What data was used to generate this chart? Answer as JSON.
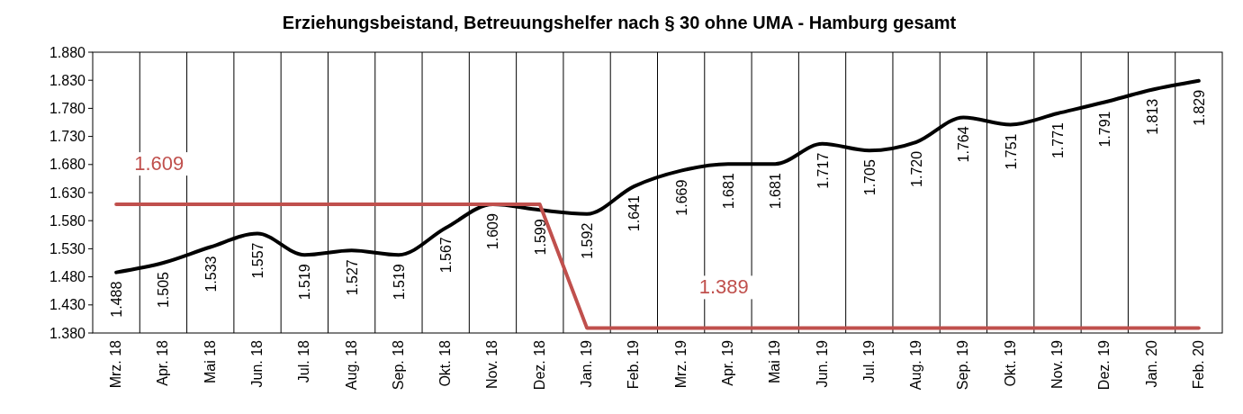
{
  "chart_data": {
    "type": "line",
    "title": "Erziehungsbeistand, Betreuungshelfer nach § 30 ohne UMA  -  Hamburg gesamt",
    "categories": [
      "Mrz. 18",
      "Apr. 18",
      "Mai 18",
      "Jun. 18",
      "Jul. 18",
      "Aug. 18",
      "Sep. 18",
      "Okt. 18",
      "Nov. 18",
      "Dez. 18",
      "Jan. 19",
      "Feb. 19",
      "Mrz. 19",
      "Apr. 19",
      "Mai 19",
      "Jun. 19",
      "Jul. 19",
      "Aug. 19",
      "Sep. 19",
      "Okt. 19",
      "Nov. 19",
      "Dez. 19",
      "Jan. 20",
      "Feb. 20"
    ],
    "series": [
      {
        "color": "#000000",
        "values": [
          1488,
          1505,
          1533,
          1557,
          1519,
          1527,
          1519,
          1567,
          1609,
          1599,
          1592,
          1641,
          1669,
          1681,
          1681,
          1717,
          1705,
          1720,
          1764,
          1751,
          1771,
          1791,
          1813,
          1829
        ],
        "value_labels": [
          "1.488",
          "1.505",
          "1.533",
          "1.557",
          "1.519",
          "1.527",
          "1.519",
          "1.567",
          "1.609",
          "1.599",
          "1.592",
          "1.641",
          "1.669",
          "1.681",
          "1.681",
          "1.717",
          "1.705",
          "1.720",
          "1.764",
          "1.751",
          "1.771",
          "1.791",
          "1.813",
          "1.829"
        ]
      },
      {
        "color": "#c0504d",
        "values": [
          1609,
          1609,
          1609,
          1609,
          1609,
          1609,
          1609,
          1609,
          1609,
          1609,
          1389,
          1389,
          1389,
          1389,
          1389,
          1389,
          1389,
          1389,
          1389,
          1389,
          1389,
          1389,
          1389,
          1389
        ]
      }
    ],
    "ylim": [
      1380,
      1880
    ],
    "yticks": [
      {
        "value": 1380,
        "label": "1.380"
      },
      {
        "value": 1430,
        "label": "1.430"
      },
      {
        "value": 1480,
        "label": "1.480"
      },
      {
        "value": 1530,
        "label": "1.530"
      },
      {
        "value": 1580,
        "label": "1.580"
      },
      {
        "value": 1630,
        "label": "1.630"
      },
      {
        "value": 1680,
        "label": "1.680"
      },
      {
        "value": 1730,
        "label": "1.730"
      },
      {
        "value": 1780,
        "label": "1.780"
      },
      {
        "value": 1830,
        "label": "1.830"
      },
      {
        "value": 1880,
        "label": "1.880"
      }
    ],
    "annotations": [
      {
        "text": "1.609",
        "x": "Mrz. 18",
        "y": 1609
      },
      {
        "text": "1.389",
        "x": "Mrz. 19",
        "y": 1389
      }
    ],
    "grid": "x",
    "marker": "none",
    "line_style": "solid"
  }
}
